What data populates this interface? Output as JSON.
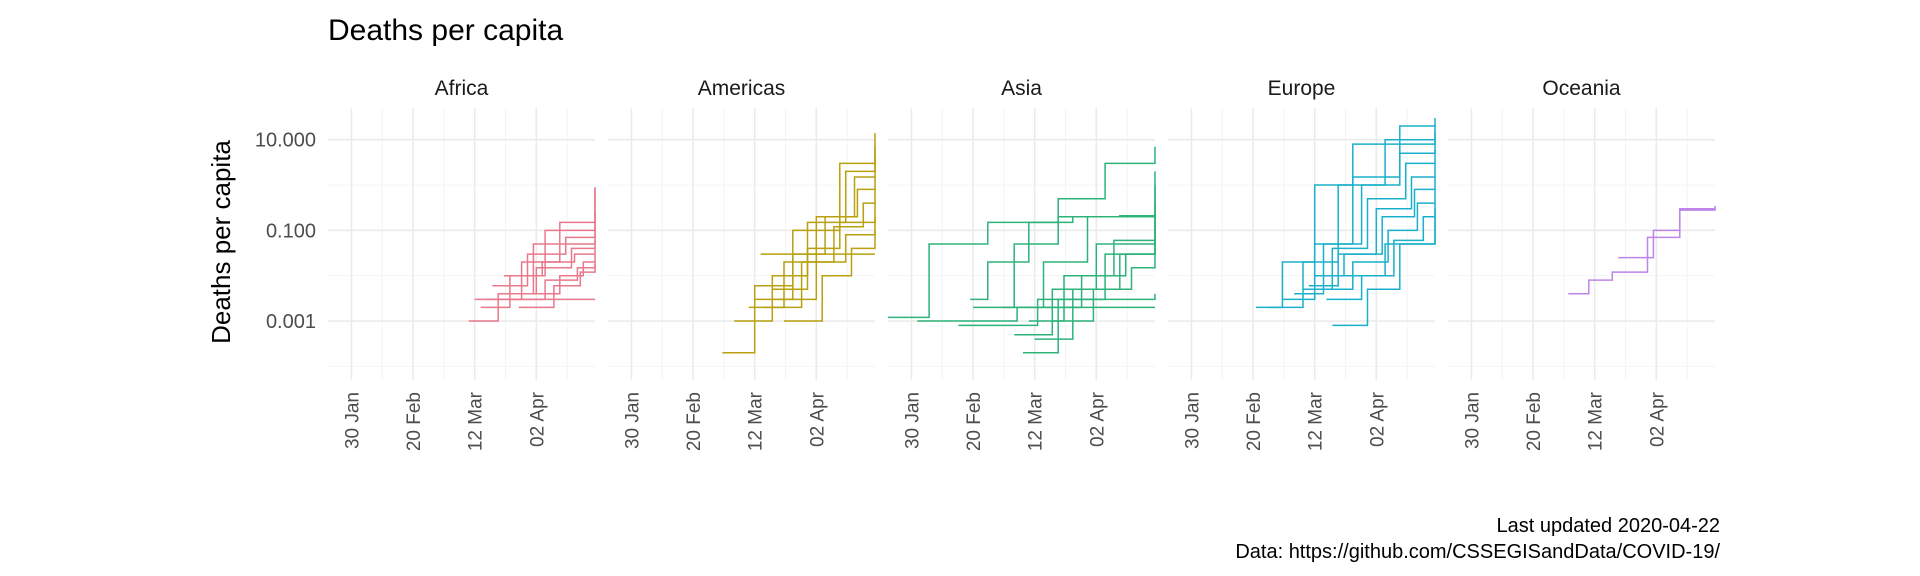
{
  "chart_data": {
    "type": "line",
    "title": "Deaths per capita",
    "ylabel": "Deaths per capita",
    "xlabel": "",
    "y_scale": "log10",
    "ylim": [
      5e-05,
      50
    ],
    "y_ticks": [
      {
        "value": 10,
        "label": "10.000"
      },
      {
        "value": 0.1,
        "label": "0.100"
      },
      {
        "value": 0.001,
        "label": "0.001"
      }
    ],
    "xlim": [
      "2020-01-22",
      "2020-04-22"
    ],
    "x_ticks": [
      {
        "value": "2020-01-30",
        "label": "30 Jan"
      },
      {
        "value": "2020-02-20",
        "label": "20 Feb"
      },
      {
        "value": "2020-03-12",
        "label": "12 Mar"
      },
      {
        "value": "2020-04-02",
        "label": "02 Apr"
      }
    ],
    "grid": true,
    "legend": "none",
    "facets": [
      {
        "name": "Africa",
        "color": "#e7798b",
        "series": [
          {
            "x": [
              "2020-03-10",
              "2020-03-20",
              "2020-04-01",
              "2020-04-22"
            ],
            "y": [
              0.001,
              0.004,
              0.05,
              0.8
            ]
          },
          {
            "x": [
              "2020-03-14",
              "2020-03-24",
              "2020-04-05",
              "2020-04-22"
            ],
            "y": [
              0.002,
              0.01,
              0.1,
              0.9
            ]
          },
          {
            "x": [
              "2020-03-16",
              "2020-03-28",
              "2020-04-10",
              "2020-04-22"
            ],
            "y": [
              0.003,
              0.02,
              0.15,
              0.25
            ]
          },
          {
            "x": [
              "2020-03-18",
              "2020-03-30",
              "2020-04-12",
              "2020-04-22"
            ],
            "y": [
              0.006,
              0.03,
              0.07,
              0.12
            ]
          },
          {
            "x": [
              "2020-03-20",
              "2020-04-02",
              "2020-04-14",
              "2020-04-22"
            ],
            "y": [
              0.004,
              0.015,
              0.04,
              0.06
            ]
          },
          {
            "x": [
              "2020-03-22",
              "2020-04-04",
              "2020-04-15",
              "2020-04-22"
            ],
            "y": [
              0.01,
              0.02,
              0.03,
              0.04
            ]
          },
          {
            "x": [
              "2020-03-25",
              "2020-04-05",
              "2020-04-16",
              "2020-04-22"
            ],
            "y": [
              0.003,
              0.008,
              0.015,
              0.02
            ]
          },
          {
            "x": [
              "2020-03-27",
              "2020-04-08",
              "2020-04-17",
              "2020-04-22"
            ],
            "y": [
              0.002,
              0.006,
              0.012,
              0.018
            ]
          },
          {
            "x": [
              "2020-03-29",
              "2020-04-10",
              "2020-04-18",
              "2020-04-22"
            ],
            "y": [
              0.004,
              0.01,
              0.02,
              0.03
            ]
          },
          {
            "x": [
              "2020-03-12",
              "2020-04-22"
            ],
            "y": [
              0.003,
              0.003
            ]
          }
        ]
      },
      {
        "name": "Americas",
        "color": "#b8a00e",
        "series": [
          {
            "x": [
              "2020-03-01",
              "2020-03-12",
              "2020-03-25",
              "2020-04-10",
              "2020-04-22"
            ],
            "y": [
              0.0002,
              0.006,
              0.1,
              3,
              14
            ]
          },
          {
            "x": [
              "2020-03-05",
              "2020-03-18",
              "2020-03-30",
              "2020-04-12",
              "2020-04-22"
            ],
            "y": [
              0.001,
              0.01,
              0.15,
              2,
              7
            ]
          },
          {
            "x": [
              "2020-03-10",
              "2020-03-22",
              "2020-04-02",
              "2020-04-15",
              "2020-04-22"
            ],
            "y": [
              0.002,
              0.02,
              0.2,
              1.5,
              4
            ]
          },
          {
            "x": [
              "2020-03-12",
              "2020-03-25",
              "2020-04-05",
              "2020-04-16",
              "2020-04-22"
            ],
            "y": [
              0.003,
              0.03,
              0.2,
              0.8,
              1.5
            ]
          },
          {
            "x": [
              "2020-03-15",
              "2020-03-28",
              "2020-04-08",
              "2020-04-18",
              "2020-04-22"
            ],
            "y": [
              0.002,
              0.02,
              0.12,
              0.4,
              0.8
            ]
          },
          {
            "x": [
              "2020-03-18",
              "2020-03-30",
              "2020-04-10",
              "2020-04-22"
            ],
            "y": [
              0.005,
              0.04,
              0.15,
              0.4
            ]
          },
          {
            "x": [
              "2020-03-20",
              "2020-04-02",
              "2020-04-12",
              "2020-04-22"
            ],
            "y": [
              0.003,
              0.02,
              0.08,
              0.2
            ]
          },
          {
            "x": [
              "2020-03-22",
              "2020-04-04",
              "2020-04-14",
              "2020-04-22"
            ],
            "y": [
              0.001,
              0.01,
              0.04,
              0.1
            ]
          },
          {
            "x": [
              "2020-03-14",
              "2020-04-22"
            ],
            "y": [
              0.03,
              0.03
            ]
          }
        ]
      },
      {
        "name": "Asia",
        "color": "#2db37a",
        "series": [
          {
            "x": [
              "2020-01-22",
              "2020-02-05",
              "2020-02-25",
              "2020-03-20",
              "2020-04-10",
              "2020-04-22"
            ],
            "y": [
              0.0012,
              0.05,
              0.15,
              0.2,
              0.21,
              0.21
            ]
          },
          {
            "x": [
              "2020-02-20",
              "2020-03-05",
              "2020-03-20",
              "2020-04-05",
              "2020-04-22"
            ],
            "y": [
              0.002,
              0.05,
              0.5,
              3,
              7
            ]
          },
          {
            "x": [
              "2020-02-19",
              "2020-02-25",
              "2020-03-10",
              "2020-03-25",
              "2020-04-22"
            ],
            "y": [
              0.003,
              0.02,
              0.15,
              0.2,
              0.25
            ]
          },
          {
            "x": [
              "2020-03-01",
              "2020-03-15",
              "2020-03-30",
              "2020-04-22"
            ],
            "y": [
              0.002,
              0.02,
              0.2,
              2
            ]
          },
          {
            "x": [
              "2020-03-05",
              "2020-03-18",
              "2020-04-02",
              "2020-04-22"
            ],
            "y": [
              0.0005,
              0.005,
              0.05,
              1
            ]
          },
          {
            "x": [
              "2020-03-08",
              "2020-03-20",
              "2020-04-05",
              "2020-04-22"
            ],
            "y": [
              0.0002,
              0.003,
              0.03,
              0.4
            ]
          },
          {
            "x": [
              "2020-03-10",
              "2020-03-22",
              "2020-04-08",
              "2020-04-22"
            ],
            "y": [
              0.001,
              0.01,
              0.06,
              0.2
            ]
          },
          {
            "x": [
              "2020-03-12",
              "2020-03-25",
              "2020-04-10",
              "2020-04-22"
            ],
            "y": [
              0.0004,
              0.005,
              0.03,
              0.1
            ]
          },
          {
            "x": [
              "2020-03-15",
              "2020-03-28",
              "2020-04-12",
              "2020-04-22"
            ],
            "y": [
              0.002,
              0.01,
              0.03,
              0.06
            ]
          },
          {
            "x": [
              "2020-03-18",
              "2020-04-01",
              "2020-04-14",
              "2020-04-22"
            ],
            "y": [
              0.001,
              0.005,
              0.015,
              0.03
            ]
          },
          {
            "x": [
              "2020-02-01",
              "2020-03-05",
              "2020-03-06",
              "2020-04-22"
            ],
            "y": [
              0.001,
              0.001,
              0.002,
              0.002
            ]
          },
          {
            "x": [
              "2020-02-15",
              "2020-03-12",
              "2020-03-13",
              "2020-04-22"
            ],
            "y": [
              0.0008,
              0.0008,
              0.003,
              0.004
            ]
          }
        ]
      },
      {
        "name": "Europe",
        "color": "#1ab0cc",
        "series": [
          {
            "x": [
              "2020-02-21",
              "2020-03-01",
              "2020-03-12",
              "2020-03-25",
              "2020-04-10",
              "2020-04-22"
            ],
            "y": [
              0.002,
              0.02,
              1,
              8,
              20,
              30
            ]
          },
          {
            "x": [
              "2020-02-25",
              "2020-03-08",
              "2020-03-20",
              "2020-04-05",
              "2020-04-22"
            ],
            "y": [
              0.002,
              0.02,
              1,
              10,
              22
            ]
          },
          {
            "x": [
              "2020-03-01",
              "2020-03-12",
              "2020-03-25",
              "2020-04-10",
              "2020-04-22"
            ],
            "y": [
              0.003,
              0.05,
              1.5,
              8,
              15
            ]
          },
          {
            "x": [
              "2020-03-05",
              "2020-03-15",
              "2020-03-28",
              "2020-04-10",
              "2020-04-22"
            ],
            "y": [
              0.004,
              0.05,
              1,
              5,
              10
            ]
          },
          {
            "x": [
              "2020-03-08",
              "2020-03-18",
              "2020-03-30",
              "2020-04-12",
              "2020-04-22"
            ],
            "y": [
              0.005,
              0.04,
              0.5,
              3,
              6
            ]
          },
          {
            "x": [
              "2020-03-10",
              "2020-03-20",
              "2020-04-02",
              "2020-04-14",
              "2020-04-22"
            ],
            "y": [
              0.006,
              0.03,
              0.3,
              1.5,
              3
            ]
          },
          {
            "x": [
              "2020-03-12",
              "2020-03-22",
              "2020-04-04",
              "2020-04-15",
              "2020-04-22"
            ],
            "y": [
              0.01,
              0.03,
              0.2,
              0.8,
              1.5
            ]
          },
          {
            "x": [
              "2020-03-14",
              "2020-03-25",
              "2020-04-06",
              "2020-04-16",
              "2020-04-22"
            ],
            "y": [
              0.005,
              0.02,
              0.1,
              0.4,
              0.8
            ]
          },
          {
            "x": [
              "2020-03-16",
              "2020-03-28",
              "2020-04-08",
              "2020-04-18",
              "2020-04-22"
            ],
            "y": [
              0.003,
              0.01,
              0.06,
              0.2,
              0.4
            ]
          },
          {
            "x": [
              "2020-03-18",
              "2020-03-30",
              "2020-04-10",
              "2020-04-22"
            ],
            "y": [
              0.0008,
              0.005,
              0.05,
              0.2
            ]
          },
          {
            "x": [
              "2020-03-12",
              "2020-03-30",
              "2020-04-05",
              "2020-04-22"
            ],
            "y": [
              0.01,
              0.01,
              0.05,
              0.3
            ]
          }
        ]
      },
      {
        "name": "Oceania",
        "color": "#bf84e8",
        "series": [
          {
            "x": [
              "2020-03-03",
              "2020-03-10",
              "2020-03-18",
              "2020-03-30",
              "2020-04-10",
              "2020-04-22"
            ],
            "y": [
              0.004,
              0.008,
              0.012,
              0.07,
              0.3,
              0.35
            ]
          },
          {
            "x": [
              "2020-03-20",
              "2020-03-31",
              "2020-04-01",
              "2020-04-10",
              "2020-04-22"
            ],
            "y": [
              0.025,
              0.025,
              0.1,
              0.28,
              0.32
            ]
          }
        ]
      }
    ]
  },
  "caption": {
    "line1": "Last updated 2020-04-22",
    "line2": "Data: https://github.com/CSSEGISandData/COVID-19/"
  }
}
